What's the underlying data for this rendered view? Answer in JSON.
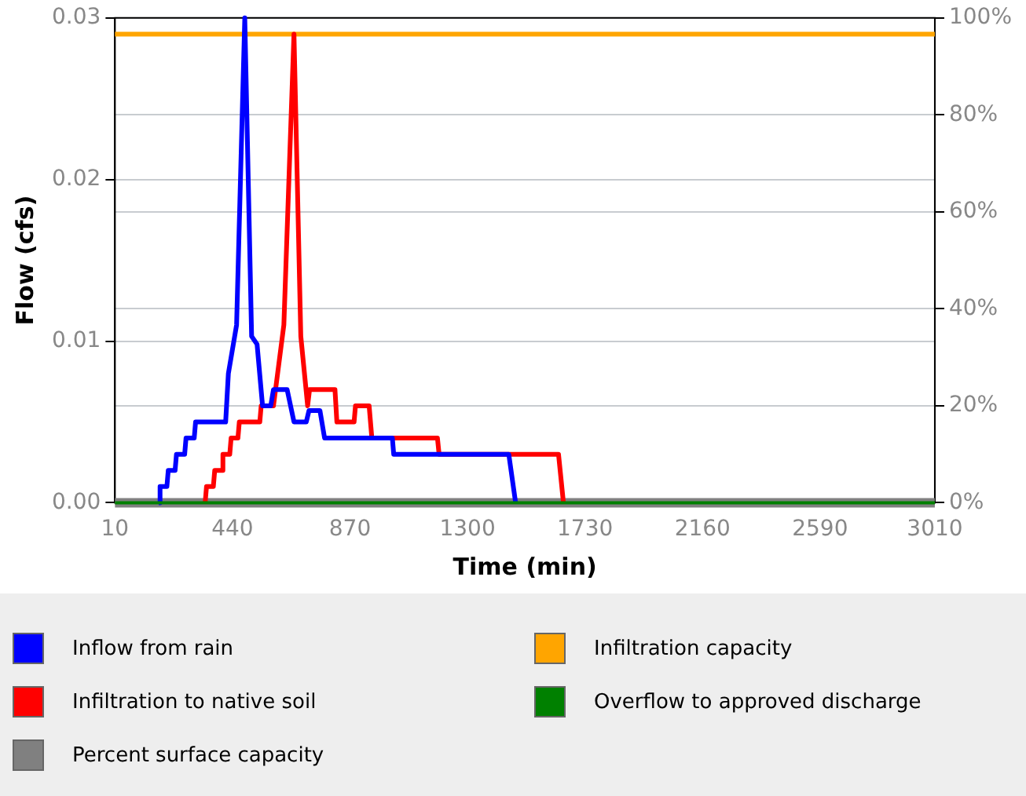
{
  "chart_data": {
    "type": "line",
    "xlabel": "Time (min)",
    "ylabel": "Flow (cfs)",
    "xlim": [
      10,
      3010
    ],
    "xticks": [
      10,
      440,
      870,
      1300,
      1730,
      2160,
      2590,
      3010
    ],
    "ylim": [
      0,
      0.03
    ],
    "yticks": [
      {
        "value": 0,
        "label": "0.00"
      },
      {
        "value": 0.01,
        "label": "0.01"
      },
      {
        "value": 0.02,
        "label": "0.02"
      },
      {
        "value": 0.03,
        "label": "0.03"
      }
    ],
    "y2lim": [
      0,
      100
    ],
    "y2ticks": [
      {
        "value": 0,
        "label": "0%"
      },
      {
        "value": 20,
        "label": "20%"
      },
      {
        "value": 40,
        "label": "40%"
      },
      {
        "value": 60,
        "label": "60%"
      },
      {
        "value": 80,
        "label": "80%"
      },
      {
        "value": 100,
        "label": "100%"
      }
    ],
    "grid": true,
    "legend": "bottom",
    "marker": "none",
    "line_style": "solid",
    "series": [
      {
        "name": "Inflow from rain",
        "color": "#0000ff",
        "x": [
          170,
          175,
          200,
          205,
          230,
          235,
          265,
          270,
          300,
          305,
          415,
          425,
          455,
          485,
          510,
          530,
          550,
          580,
          590,
          640,
          665,
          710,
          720,
          760,
          777,
          1025,
          1030,
          1451,
          1476
        ],
        "values": [
          0,
          0.001,
          0.001,
          0.002,
          0.002,
          0.003,
          0.003,
          0.004,
          0.004,
          0.005,
          0.005,
          0.008,
          0.011,
          0.03,
          0.0103,
          0.0098,
          0.006,
          0.006,
          0.007,
          0.007,
          0.005,
          0.005,
          0.0057,
          0.0057,
          0.004,
          0.004,
          0.003,
          0.003,
          0
        ]
      },
      {
        "name": "Infiltration to native soil",
        "color": "#ff0000",
        "x": [
          340,
          345,
          370,
          375,
          400,
          405,
          430,
          435,
          460,
          465,
          540,
          545,
          590,
          628,
          665,
          690,
          715,
          722,
          815,
          822,
          885,
          890,
          940,
          950,
          1190,
          1196,
          1633,
          1651
        ],
        "values": [
          0,
          0.001,
          0.001,
          0.002,
          0.002,
          0.003,
          0.003,
          0.004,
          0.004,
          0.005,
          0.005,
          0.006,
          0.006,
          0.011,
          0.029,
          0.0103,
          0.006,
          0.007,
          0.007,
          0.005,
          0.005,
          0.006,
          0.006,
          0.004,
          0.004,
          0.003,
          0.003,
          0
        ]
      },
      {
        "name": "Percent surface capacity",
        "color": "#808080",
        "axis": "y2",
        "x": [
          10,
          3010
        ],
        "values": [
          0,
          0
        ]
      },
      {
        "name": "Infiltration capacity",
        "color": "#ffa500",
        "x": [
          10,
          3010
        ],
        "values": [
          0.029,
          0.029
        ]
      },
      {
        "name": "Overflow to approved discharge",
        "color": "#008000",
        "x": [
          10,
          3010
        ],
        "values": [
          0,
          0
        ]
      }
    ]
  }
}
